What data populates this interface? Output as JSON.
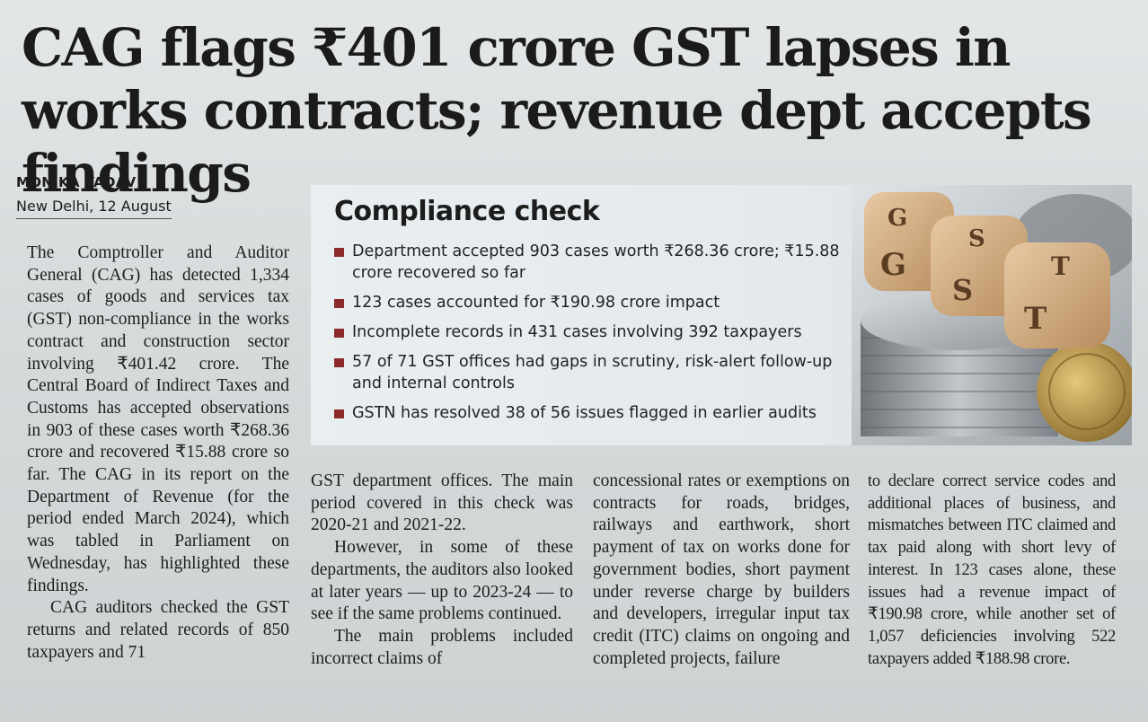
{
  "article": {
    "headline": "CAG flags ₹401 crore GST lapses in works contracts; revenue dept accepts findings",
    "byline": {
      "author": "MONIKA YADAV",
      "dateline": "New Delhi, 12 August"
    },
    "factbox": {
      "title": "Compliance check",
      "items": [
        "Department accepted 903 cases worth ₹268.36 crore; ₹15.88 crore recovered so far",
        "123 cases accounted for ₹190.98 crore impact",
        "Incomplete records in 431 cases involving 392 taxpayers",
        "57 of 71 GST offices had gaps in scrutiny, risk-alert follow-up and internal controls",
        "GSTN has resolved 38 of 56 issues flagged in earlier audits"
      ],
      "image": {
        "icon": "gst-dice-and-coins-illustration",
        "dice_letters": [
          "G",
          "S",
          "T",
          "G",
          "S",
          "T"
        ]
      }
    },
    "body": {
      "col1": [
        "The Comptroller and Auditor General (CAG) has detected 1,334 cases of goods and services tax (GST) non-compliance in the works contract and construction sector involving ₹401.42 crore. The Central Board of Indirect Taxes and Customs has accepted observations in 903 of these cases worth ₹268.36 crore and recovered ₹15.88 crore so far. The CAG in its report on the Department of Revenue (for the period ended March 2024), which was tabled in Parliament on Wednesday, has highlighted these findings.",
        "CAG auditors checked the GST returns and related records of 850 taxpayers and 71"
      ],
      "col2": [
        "GST department offices. The main period covered in this check was 2020-21 and 2021-22.",
        "However, in some of these departments, the auditors also looked at later years — up to 2023-24 — to see if the same problems continued.",
        "The main problems included incorrect claims of"
      ],
      "col3": [
        "concessional rates or exemptions on contracts for roads, bridges, railways and earthwork, short payment of tax on works done for government bodies, short payment under reverse charge by builders and developers, irregular input tax credit (ITC) claims on ongoing and completed projects, failure"
      ],
      "col4": [
        "to declare correct service codes and additional places of business, and mismatches between ITC claimed and tax paid along with short levy of interest. In 123 cases alone, these issues had a revenue impact of ₹190.98 crore, while another set of 1,057 deficiencies involving 522 taxpayers added ₹188.98 crore."
      ]
    }
  },
  "colors": {
    "paper": "#d8dcdd",
    "ink": "#1c1c1c",
    "bullet": "#8c2a2a",
    "factbox_bg": "#e7ecef"
  }
}
